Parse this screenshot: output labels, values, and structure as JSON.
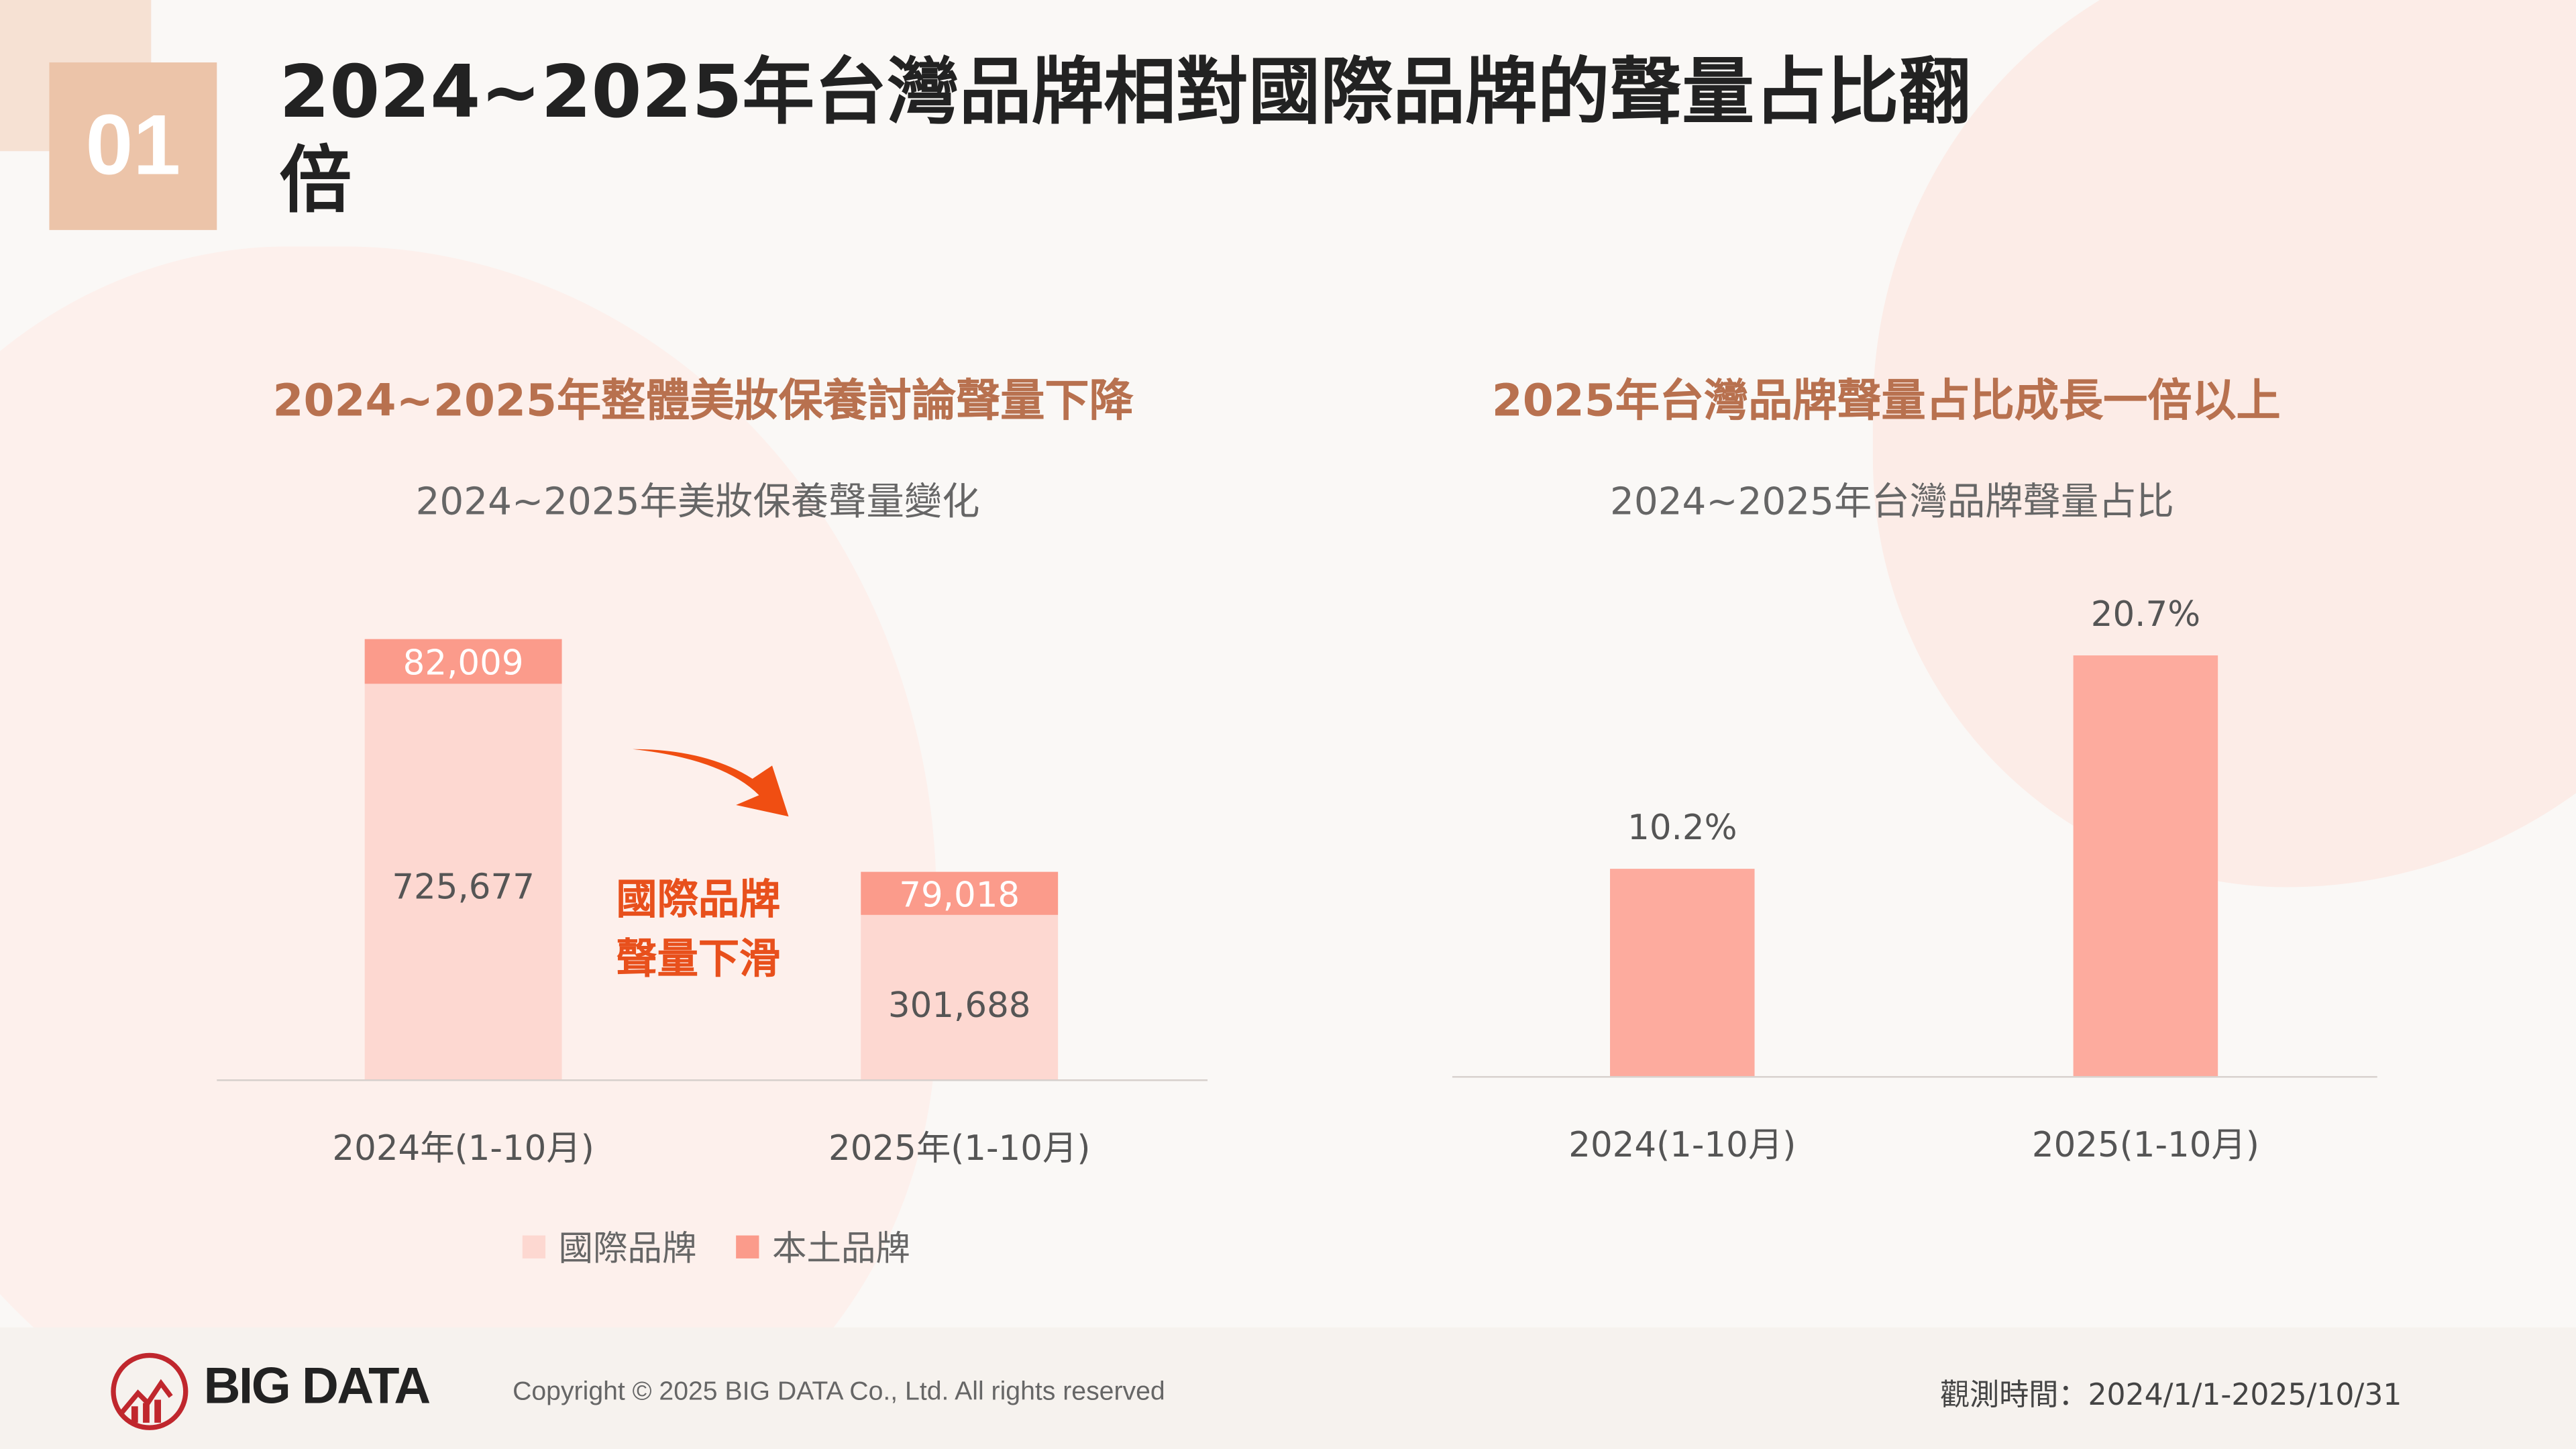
{
  "section_number": "01",
  "title": "2024~2025年台灣品牌相對國際品牌的聲量占比翻倍",
  "colors": {
    "international": "#fdd8d1",
    "local": "#fb9b8b",
    "share_bar": "#fdab9e",
    "heading": "#b8714f",
    "callout": "#e8501c"
  },
  "chart_data": [
    {
      "type": "bar",
      "stacked": true,
      "heading": "2024~2025年整體美妝保養討論聲量下降",
      "title": "2024~2025年美妝保養聲量變化",
      "categories": [
        "2024年(1-10月)",
        "2025年(1-10月)"
      ],
      "series": [
        {
          "name": "國際品牌",
          "values": [
            725677,
            301688
          ],
          "labels": [
            "725,677",
            "301,688"
          ]
        },
        {
          "name": "本土品牌",
          "values": [
            82009,
            79018
          ],
          "labels": [
            "82,009",
            "79,018"
          ]
        }
      ],
      "legend": "bottom",
      "annotation": [
        "國際品牌",
        "聲量下滑"
      ],
      "grid": false
    },
    {
      "type": "bar",
      "heading": "2025年台灣品牌聲量占比成長一倍以上",
      "title": "2024~2025年台灣品牌聲量占比",
      "categories": [
        "2024(1-10月)",
        "2025(1-10月)"
      ],
      "values": [
        10.2,
        20.7
      ],
      "labels": [
        "10.2%",
        "20.7%"
      ],
      "grid": false
    }
  ],
  "footer": {
    "logo": "BIG DATA",
    "copyright": "Copyright © 2025 BIG DATA Co., Ltd. All rights reserved",
    "period": "觀測時間：2024/1/1-2025/10/31"
  }
}
